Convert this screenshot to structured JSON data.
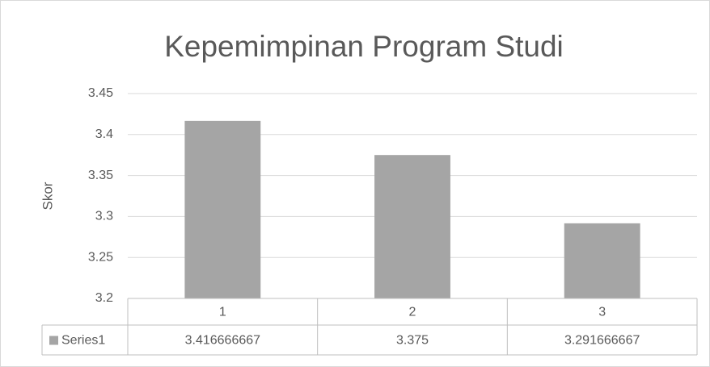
{
  "chart_data": {
    "type": "bar",
    "title": "Kepemimpinan Program Studi",
    "y_label": "Skor",
    "categories": [
      "1",
      "2",
      "3"
    ],
    "series": [
      {
        "name": "Series1",
        "color": "#a5a5a5",
        "values": [
          3.416666667,
          3.375,
          3.291666667
        ]
      }
    ],
    "ylim": [
      3.2,
      3.45
    ],
    "yticks": [
      3.2,
      3.25,
      3.3,
      3.35,
      3.4,
      3.45
    ],
    "grid": true,
    "data_table": true
  }
}
